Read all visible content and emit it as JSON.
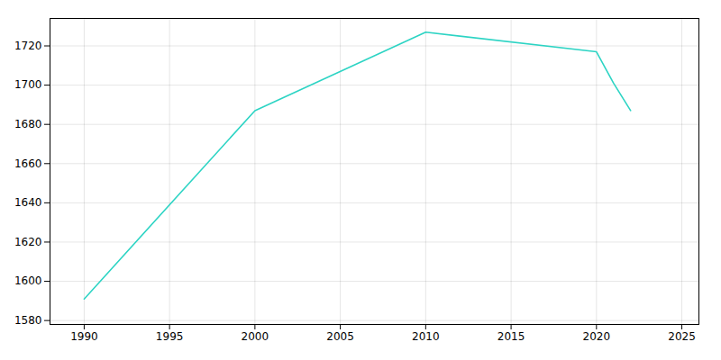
{
  "chart_data": {
    "type": "line",
    "x": [
      1990,
      2000,
      2010,
      2020,
      2021,
      2022
    ],
    "values": [
      1591,
      1687,
      1727,
      1717,
      1701,
      1687
    ],
    "color": "#2dd4c4",
    "xlim": [
      1988,
      2026
    ],
    "ylim": [
      1578,
      1734
    ],
    "xticks": [
      1990,
      1995,
      2000,
      2005,
      2010,
      2015,
      2020,
      2025
    ],
    "yticks": [
      1580,
      1600,
      1620,
      1640,
      1660,
      1680,
      1700,
      1720
    ],
    "grid": true
  }
}
